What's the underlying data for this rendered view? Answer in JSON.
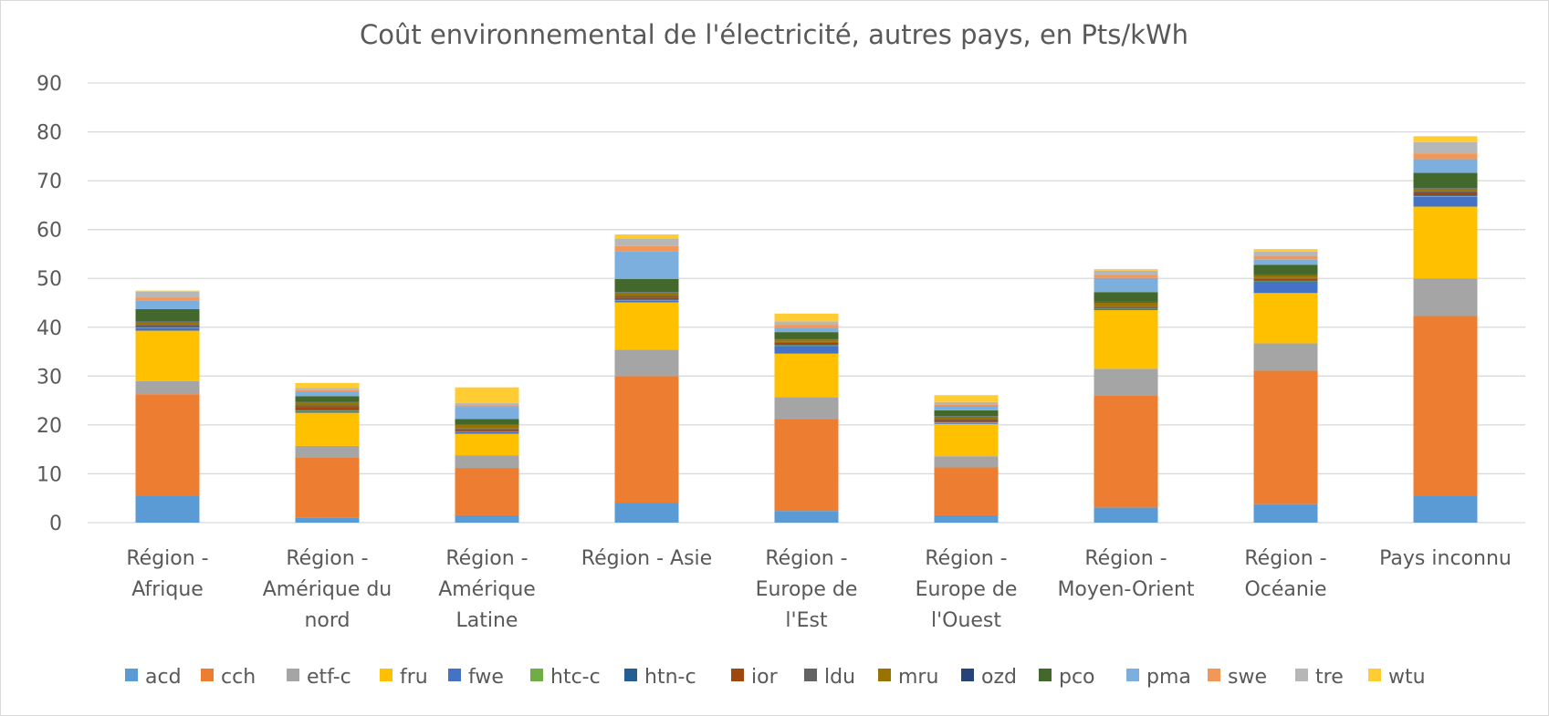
{
  "chart_data": {
    "type": "bar",
    "stacked": true,
    "title": "Coût environnemental de l'électricité, autres pays, en Pts/kWh",
    "xlabel": "",
    "ylabel": "",
    "ylim": [
      0,
      90
    ],
    "yticks": [
      0,
      10,
      20,
      30,
      40,
      50,
      60,
      70,
      80,
      90
    ],
    "grid": true,
    "legend_position": "bottom",
    "categories": [
      "Région - Afrique",
      "Région - Amérique du nord",
      "Région - Amérique Latine",
      "Région - Asie",
      "Région - Europe de l'Est",
      "Région - Europe de l'Ouest",
      "Région - Moyen-Orient",
      "Région - Océanie",
      "Pays inconnu"
    ],
    "series": [
      {
        "name": "acd",
        "color": "#5b9bd5",
        "values": [
          5.5,
          1.0,
          1.5,
          4.1,
          2.4,
          1.5,
          3.1,
          3.8,
          5.5
        ]
      },
      {
        "name": "cch",
        "color": "#ed7d31",
        "values": [
          20.8,
          12.4,
          9.7,
          25.9,
          18.8,
          9.8,
          23.0,
          27.3,
          36.8
        ]
      },
      {
        "name": "etf-c",
        "color": "#a5a5a5",
        "values": [
          2.7,
          2.3,
          2.6,
          5.4,
          4.5,
          2.3,
          5.4,
          5.6,
          7.7
        ]
      },
      {
        "name": "fru",
        "color": "#ffc000",
        "values": [
          10.3,
          6.8,
          4.4,
          9.7,
          8.9,
          6.6,
          12.0,
          10.3,
          14.7
        ]
      },
      {
        "name": "fwe",
        "color": "#4472c4",
        "values": [
          0.5,
          0.3,
          0.3,
          0.3,
          1.6,
          0.2,
          0.2,
          2.3,
          2.0
        ]
      },
      {
        "name": "htc-c",
        "color": "#70ad47",
        "values": [
          0.1,
          0.1,
          0.1,
          0.1,
          0.1,
          0.1,
          0.1,
          0.1,
          0.1
        ]
      },
      {
        "name": "htn-c",
        "color": "#255e91",
        "values": [
          0.2,
          0.2,
          0.1,
          0.2,
          0.1,
          0.1,
          0.1,
          0.2,
          0.2
        ]
      },
      {
        "name": "ior",
        "color": "#9e480e",
        "values": [
          0.3,
          0.6,
          0.4,
          0.4,
          0.4,
          0.4,
          0.3,
          0.3,
          0.5
        ]
      },
      {
        "name": "ldu",
        "color": "#636363",
        "values": [
          0.2,
          0.3,
          0.2,
          0.3,
          0.2,
          0.2,
          0.2,
          0.2,
          0.3
        ]
      },
      {
        "name": "mru",
        "color": "#997300",
        "values": [
          0.5,
          0.6,
          0.7,
          0.7,
          0.5,
          0.5,
          0.7,
          0.6,
          0.6
        ]
      },
      {
        "name": "ozd",
        "color": "#264478",
        "values": [
          0.1,
          0.1,
          0.1,
          0.1,
          0.1,
          0.1,
          0.1,
          0.1,
          0.1
        ]
      },
      {
        "name": "pco",
        "color": "#43682b",
        "values": [
          2.5,
          1.2,
          1.1,
          2.7,
          1.4,
          1.2,
          2.0,
          2.0,
          3.1
        ]
      },
      {
        "name": "pma",
        "color": "#7cafdd",
        "values": [
          1.7,
          0.9,
          2.5,
          5.7,
          0.9,
          0.9,
          2.9,
          1.1,
          2.8
        ]
      },
      {
        "name": "swe",
        "color": "#f1975a",
        "values": [
          0.7,
          0.3,
          0.3,
          1.0,
          0.6,
          0.3,
          0.6,
          0.7,
          1.2
        ]
      },
      {
        "name": "tre",
        "color": "#b7b7b7",
        "values": [
          1.2,
          0.5,
          0.5,
          1.6,
          0.7,
          0.5,
          0.9,
          0.9,
          2.3
        ]
      },
      {
        "name": "wtu",
        "color": "#ffcd33",
        "values": [
          0.2,
          1.0,
          3.2,
          0.8,
          1.6,
          1.4,
          0.3,
          0.5,
          1.2
        ]
      }
    ]
  },
  "axis_color": "#d9d9d9",
  "text_color": "#595959"
}
